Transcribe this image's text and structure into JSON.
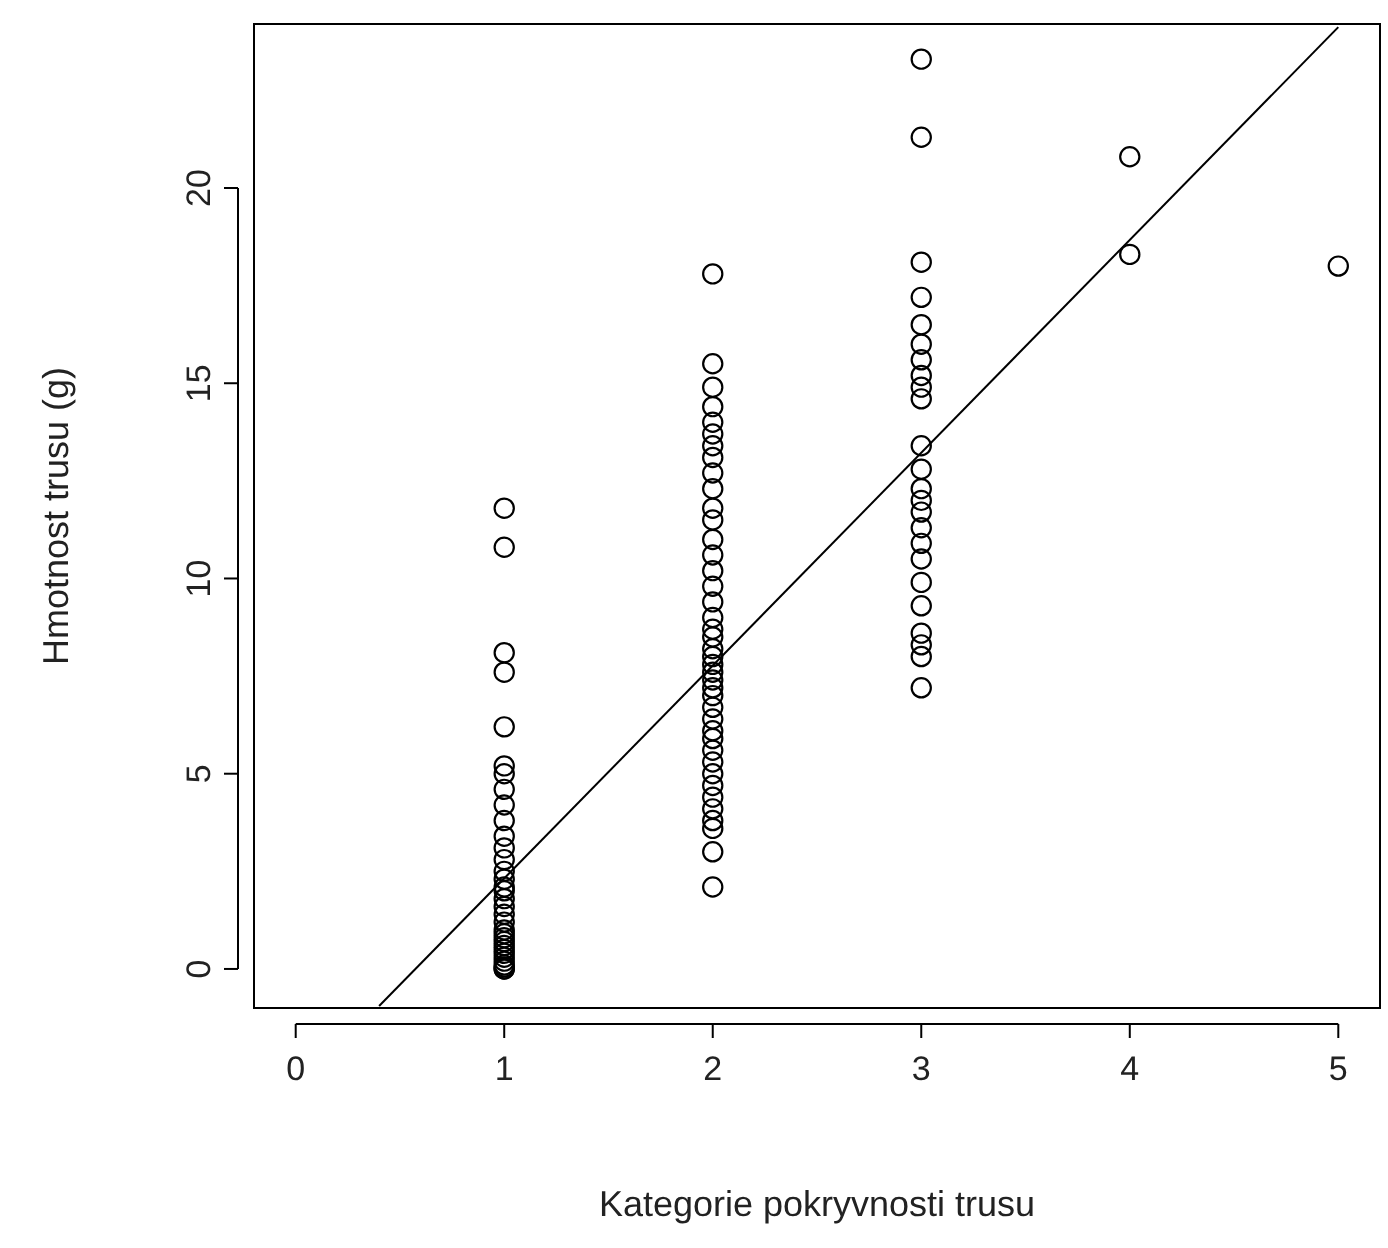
{
  "chart_data": {
    "type": "scatter",
    "xlabel": "Kategorie pokryvnosti trusu",
    "ylabel": "Hmotnost trusu (g)",
    "xlim": [
      -0.2,
      5.2
    ],
    "ylim": [
      -1,
      24.2
    ],
    "xticks": [
      0,
      1,
      2,
      3,
      4,
      5
    ],
    "yticks": [
      0,
      5,
      10,
      15,
      20
    ],
    "grid": false,
    "marker": "circle",
    "series": [
      {
        "color": "#000000",
        "x": [
          1,
          1,
          1,
          1,
          1,
          1,
          1,
          1,
          1,
          1,
          1,
          1,
          1,
          1,
          1,
          1,
          1,
          1,
          1,
          1,
          1,
          1,
          1,
          1,
          1,
          1,
          1,
          1,
          1,
          1,
          1,
          1,
          1,
          1,
          2,
          2,
          2,
          2,
          2,
          2,
          2,
          2,
          2,
          2,
          2,
          2,
          2,
          2,
          2,
          2,
          2,
          2,
          2,
          2,
          2,
          2,
          2,
          2,
          2,
          2,
          2,
          2,
          2,
          2,
          2,
          2,
          2,
          2,
          2,
          2,
          2,
          2,
          2,
          2,
          2,
          3,
          3,
          3,
          3,
          3,
          3,
          3,
          3,
          3,
          3,
          3,
          3,
          3,
          3,
          3,
          3,
          3,
          3,
          3,
          3,
          3,
          3,
          3,
          3,
          4,
          4,
          5
        ],
        "values": [
          11.8,
          10.8,
          8.1,
          7.6,
          6.2,
          5.2,
          5.0,
          4.6,
          4.2,
          3.8,
          3.4,
          3.1,
          2.8,
          2.5,
          2.3,
          2.1,
          2.0,
          1.8,
          1.6,
          1.4,
          1.2,
          1.0,
          0.9,
          0.8,
          0.7,
          0.6,
          0.5,
          0.4,
          0.3,
          0.2,
          0.1,
          0.0,
          0.0,
          0.05,
          17.8,
          15.5,
          14.9,
          14.4,
          14.0,
          13.7,
          13.4,
          13.1,
          12.7,
          12.3,
          11.8,
          11.5,
          11.0,
          10.6,
          10.2,
          9.8,
          9.4,
          9.0,
          8.7,
          8.5,
          8.2,
          8.0,
          7.8,
          7.6,
          7.4,
          7.2,
          7.0,
          6.7,
          6.4,
          6.1,
          5.9,
          5.6,
          5.3,
          5.0,
          4.7,
          4.4,
          4.1,
          3.8,
          3.6,
          3.0,
          2.1,
          23.3,
          21.3,
          18.1,
          17.2,
          16.5,
          16.0,
          15.6,
          15.2,
          14.9,
          14.6,
          13.4,
          12.8,
          12.3,
          12.0,
          11.7,
          11.3,
          10.9,
          10.5,
          9.9,
          9.3,
          8.6,
          8.3,
          8.0,
          7.2,
          20.8,
          18.3,
          18.0
        ]
      },
      {
        "type": "line",
        "color": "#000000",
        "line_style": "solid",
        "marker": "none",
        "x": [
          0.4,
          5
        ],
        "values": [
          -0.95,
          24.12
        ]
      }
    ]
  }
}
